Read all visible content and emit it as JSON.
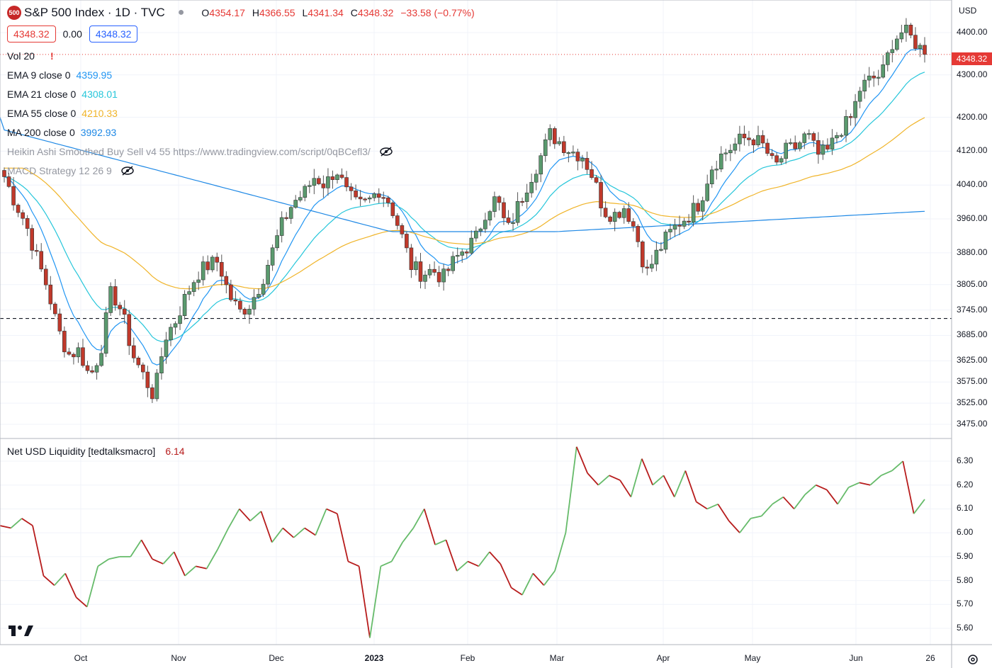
{
  "header": {
    "symbol_badge": "500",
    "title": "S&P 500 Index · 1D · TVC",
    "ohlc": {
      "o_label": "O",
      "o": "4354.17",
      "h_label": "H",
      "h": "4366.55",
      "l_label": "L",
      "l": "4341.34",
      "c_label": "C",
      "c": "4348.32",
      "change": "−33.58 (−0.77%)"
    },
    "sell_price": "4348.32",
    "spread": "0.00",
    "buy_price": "4348.32"
  },
  "indicators": [
    {
      "label": "Vol 20",
      "value": "!",
      "color": "#e53935"
    },
    {
      "label": "EMA 9 close 0",
      "value": "4359.95",
      "color": "#2196f3"
    },
    {
      "label": "EMA 21 close 0",
      "value": "4308.01",
      "color": "#26c6da"
    },
    {
      "label": "EMA 55 close 0",
      "value": "4210.33",
      "color": "#f0b429"
    },
    {
      "label": "MA 200 close 0",
      "value": "3992.93",
      "color": "#1e88e5"
    },
    {
      "label": "Heikin Ashi Smoothed Buy Sell v4 55 https://www.tradingview.com/script/0qBCefl3/",
      "value": "",
      "color": "#9598a1"
    },
    {
      "label": "MACD Strategy 12 26 9",
      "value": "",
      "color": "#9598a1"
    }
  ],
  "lower_pane": {
    "label": "Net USD Liquidity [tedtalksmacro]",
    "value": "6.14",
    "value_color": "#b71c1c"
  },
  "price_axis": {
    "currency": "USD",
    "current_price": "4348.32",
    "ticks": [
      "4400.00",
      "4300.00",
      "4200.00",
      "4120.00",
      "4040.00",
      "3960.00",
      "3880.00",
      "3805.00",
      "3745.00",
      "3685.00",
      "3625.00",
      "3575.00",
      "3525.00",
      "3475.00"
    ]
  },
  "liquidity_axis": {
    "ticks": [
      "6.30",
      "6.20",
      "6.10",
      "6.00",
      "5.90",
      "5.80",
      "5.70",
      "5.60"
    ]
  },
  "time_axis": {
    "labels": [
      "Oct",
      "Nov",
      "Dec",
      "2023",
      "Feb",
      "Mar",
      "Apr",
      "May",
      "Jun",
      "26"
    ]
  },
  "colors": {
    "up": "#5a9a6e",
    "down": "#c0392b",
    "ema9": "#2196f3",
    "ema21": "#26c6da",
    "ema55": "#f0b429",
    "ma200": "#1e88e5",
    "liq_up": "#66bb6a",
    "liq_down": "#b71c1c"
  },
  "chart_data": [
    {
      "type": "candlestick",
      "title": "S&P 500 Index · 1D · TVC",
      "ylim": [
        3450,
        4460
      ],
      "last_close": 4348.32,
      "horizontal_line": 3725,
      "x_labels": [
        "Oct",
        "Nov",
        "Dec",
        "2023",
        "Feb",
        "Mar",
        "Apr",
        "May",
        "Jun",
        "26"
      ],
      "close_path": [
        4060,
        4000,
        3950,
        3870,
        3800,
        3700,
        3640,
        3650,
        3585,
        3650,
        3790,
        3740,
        3640,
        3590,
        3540,
        3680,
        3720,
        3780,
        3830,
        3850,
        3860,
        3780,
        3740,
        3760,
        3810,
        3880,
        3950,
        4000,
        4020,
        4060,
        4040,
        4080,
        4020,
        3990,
        4000,
        4030,
        4000,
        3930,
        3850,
        3830,
        3840,
        3820,
        3860,
        3890,
        3910,
        3980,
        4010,
        3930,
        3990,
        4050,
        4100,
        4160,
        4140,
        4120,
        4110,
        4060,
        3980,
        3970,
        3990,
        3930,
        3830,
        3880,
        3920,
        3950,
        3970,
        4000,
        4080,
        4110,
        4130,
        4150,
        4150,
        4130,
        4080,
        4120,
        4130,
        4160,
        4110,
        4120,
        4170,
        4190,
        4270,
        4290,
        4300,
        4380,
        4405,
        4380,
        4350
      ],
      "series": [
        {
          "name": "EMA 9 close 0",
          "last": 4359.95
        },
        {
          "name": "EMA 21 close 0",
          "last": 4308.01
        },
        {
          "name": "EMA 55 close 0",
          "last": 4210.33
        },
        {
          "name": "MA 200 close 0",
          "last": 3992.93
        }
      ]
    },
    {
      "type": "line",
      "title": "Net USD Liquidity [tedtalksmacro]",
      "ylim": [
        5.55,
        6.35
      ],
      "last": 6.14,
      "values": [
        6.03,
        6.02,
        6.06,
        6.03,
        5.82,
        5.78,
        5.83,
        5.73,
        5.69,
        5.86,
        5.89,
        5.9,
        5.9,
        5.97,
        5.89,
        5.87,
        5.92,
        5.82,
        5.86,
        5.85,
        5.93,
        6.02,
        6.1,
        6.05,
        6.09,
        5.96,
        6.02,
        5.98,
        6.02,
        5.99,
        6.1,
        6.08,
        5.88,
        5.86,
        5.56,
        5.86,
        5.88,
        5.96,
        6.02,
        6.1,
        5.95,
        5.97,
        5.84,
        5.88,
        5.86,
        5.92,
        5.87,
        5.77,
        5.74,
        5.83,
        5.78,
        5.84,
        6.0,
        6.36,
        6.25,
        6.2,
        6.24,
        6.22,
        6.15,
        6.31,
        6.2,
        6.24,
        6.15,
        6.26,
        6.13,
        6.1,
        6.12,
        6.05,
        6.0,
        6.06,
        6.07,
        6.12,
        6.15,
        6.1,
        6.16,
        6.2,
        6.18,
        6.12,
        6.19,
        6.21,
        6.2,
        6.24,
        6.26,
        6.3,
        6.08,
        6.14
      ]
    }
  ]
}
